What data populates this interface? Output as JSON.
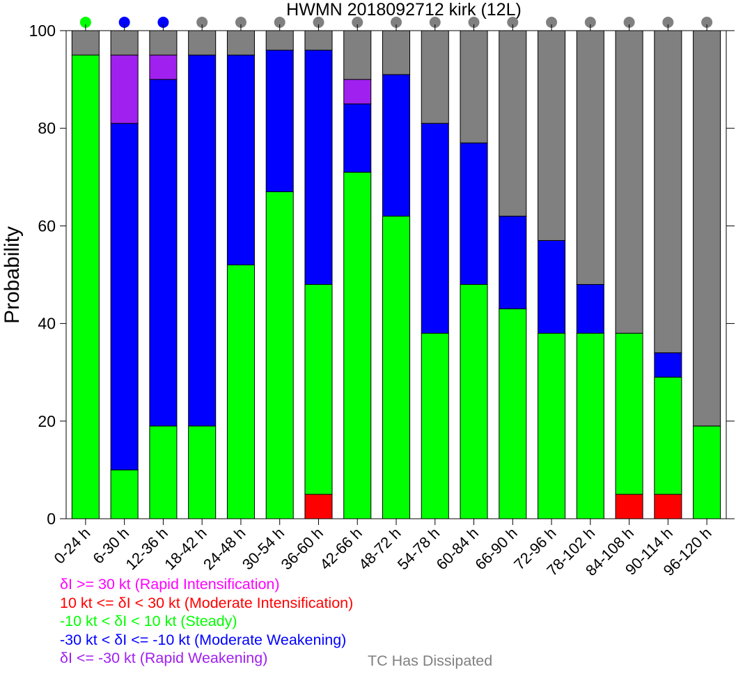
{
  "chart_data": {
    "type": "bar",
    "stacked": true,
    "title": "HWMN 2018092712 kirk (12L)",
    "ylabel": "Probability",
    "xlabel": "",
    "ylim": [
      0,
      100
    ],
    "yticks": [
      0,
      20,
      40,
      60,
      80,
      100
    ],
    "grid": false,
    "categories": [
      "0-24 h",
      "6-30 h",
      "12-36 h",
      "18-42 h",
      "24-48 h",
      "30-54 h",
      "36-60 h",
      "42-66 h",
      "48-72 h",
      "54-78 h",
      "60-84 h",
      "66-90 h",
      "72-96 h",
      "78-102 h",
      "84-108 h",
      "90-114 h",
      "96-120 h"
    ],
    "series": [
      {
        "key": "mi",
        "color": "#ff0000",
        "values": [
          0,
          0,
          0,
          0,
          0,
          0,
          5,
          0,
          0,
          0,
          0,
          0,
          0,
          0,
          5,
          5,
          0
        ]
      },
      {
        "key": "steady",
        "color": "#00ff00",
        "values": [
          95,
          10,
          19,
          19,
          52,
          67,
          43,
          71,
          62,
          38,
          48,
          43,
          38,
          38,
          33,
          24,
          19
        ]
      },
      {
        "key": "mw",
        "color": "#0000ff",
        "values": [
          0,
          71,
          71,
          76,
          43,
          29,
          48,
          14,
          29,
          43,
          29,
          19,
          19,
          10,
          0,
          5,
          0
        ]
      },
      {
        "key": "rw",
        "color": "#a020f0",
        "values": [
          0,
          14,
          5,
          0,
          0,
          0,
          0,
          5,
          0,
          0,
          0,
          0,
          0,
          0,
          0,
          0,
          0
        ]
      },
      {
        "key": "dissipated",
        "color": "#808080",
        "values": [
          5,
          5,
          5,
          5,
          5,
          4,
          4,
          10,
          9,
          19,
          23,
          38,
          43,
          52,
          62,
          66,
          81
        ]
      }
    ],
    "dot_colors": [
      "#00ff00",
      "#0000ff",
      "#0000ff",
      "#808080",
      "#808080",
      "#808080",
      "#808080",
      "#808080",
      "#808080",
      "#808080",
      "#808080",
      "#808080",
      "#808080",
      "#808080",
      "#808080",
      "#808080",
      "#808080"
    ]
  },
  "legend": {
    "items": [
      {
        "text": "δI >= 30 kt (Rapid Intensification)",
        "color": "#ff00ff"
      },
      {
        "text": "10 kt <= δI < 30 kt (Moderate Intensification)",
        "color": "#ff0000"
      },
      {
        "text": "-10 kt < δI < 10 kt (Steady)",
        "color": "#00ff00"
      },
      {
        "text": "-30 kt < δI <= -10 kt (Moderate Weakening)",
        "color": "#0000ff"
      },
      {
        "text": "δI <= -30 kt (Rapid Weakening)",
        "color": "#a020f0"
      }
    ],
    "dissipated_note": {
      "text": "TC Has Dissipated",
      "color": "#808080"
    }
  }
}
